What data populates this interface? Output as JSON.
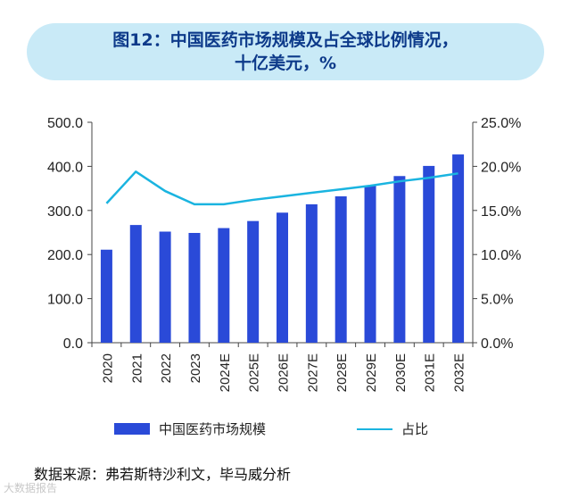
{
  "title": {
    "line1": "图12：中国医药市场规模及占全球比例情况，",
    "line2": "十亿美元，%"
  },
  "chart_data": {
    "type": "bar",
    "categories": [
      "2020",
      "2021",
      "2022",
      "2023",
      "2024E",
      "2025E",
      "2026E",
      "2027E",
      "2028E",
      "2029E",
      "2030E",
      "2031E",
      "2032E"
    ],
    "series": [
      {
        "name": "中国医药市场规模",
        "type": "bar",
        "axis": "left",
        "values": [
          211,
          267,
          252,
          249,
          260,
          276,
          295,
          314,
          332,
          356,
          378,
          401,
          427
        ]
      },
      {
        "name": "占比",
        "type": "line",
        "axis": "right",
        "values": [
          15.8,
          19.4,
          17.2,
          15.7,
          15.7,
          16.2,
          16.6,
          17.0,
          17.4,
          17.8,
          18.3,
          18.7,
          19.2
        ]
      }
    ],
    "ylim_left": [
      0,
      500
    ],
    "ylim_right": [
      0,
      25
    ],
    "yticks_left": [
      "0.0",
      "100.0",
      "200.0",
      "300.0",
      "400.0",
      "500.0"
    ],
    "yticks_right": [
      "0.0%",
      "5.0%",
      "10.0%",
      "15.0%",
      "20.0%",
      "25.0%"
    ],
    "colors": {
      "bar": "#2a4ad8",
      "line": "#1ab4e0"
    },
    "grid": false,
    "legend_position": "bottom"
  },
  "source": "数据来源：弗若斯特沙利文，毕马威分析",
  "watermark": "大数据报告"
}
